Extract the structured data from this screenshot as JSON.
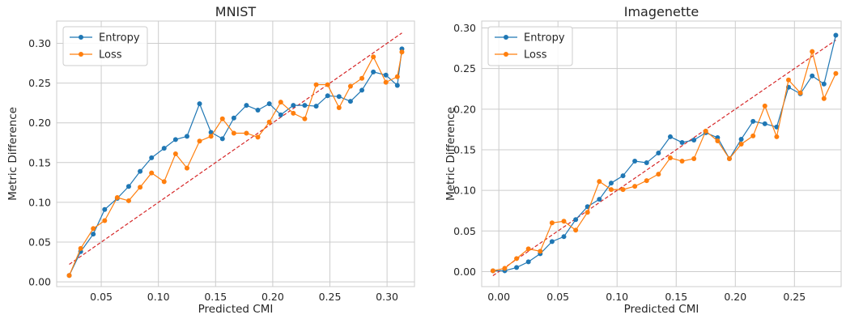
{
  "chart_data": [
    {
      "type": "line",
      "title": "MNIST",
      "xlabel": "Predicted CMI",
      "ylabel": "Metric Difference",
      "xlim": [
        0.011,
        0.324
      ],
      "ylim": [
        -0.006,
        0.328
      ],
      "xticks": [
        0.05,
        0.1,
        0.15,
        0.2,
        0.25,
        0.3
      ],
      "xtick_labels": [
        "0.05",
        "0.10",
        "0.15",
        "0.20",
        "0.25",
        "0.30"
      ],
      "yticks": [
        0.0,
        0.05,
        0.1,
        0.15,
        0.2,
        0.25,
        0.3
      ],
      "ytick_labels": [
        "0.00",
        "0.05",
        "0.10",
        "0.15",
        "0.20",
        "0.25",
        "0.30"
      ],
      "grid": true,
      "legend_position": "top-left",
      "x": [
        0.022,
        0.032,
        0.043,
        0.053,
        0.064,
        0.074,
        0.084,
        0.094,
        0.105,
        0.115,
        0.125,
        0.136,
        0.146,
        0.156,
        0.166,
        0.177,
        0.187,
        0.197,
        0.207,
        0.218,
        0.228,
        0.238,
        0.248,
        0.258,
        0.268,
        0.278,
        0.288,
        0.299,
        0.309,
        0.313
      ],
      "series": [
        {
          "name": "Entropy",
          "color": "#1f77b4",
          "values": [
            0.008,
            0.038,
            0.06,
            0.091,
            0.105,
            0.12,
            0.139,
            0.156,
            0.168,
            0.179,
            0.183,
            0.224,
            0.188,
            0.18,
            0.206,
            0.222,
            0.216,
            0.224,
            0.21,
            0.222,
            0.222,
            0.221,
            0.234,
            0.233,
            0.227,
            0.241,
            0.264,
            0.26,
            0.247,
            0.293
          ]
        },
        {
          "name": "Loss",
          "color": "#ff7f0e",
          "values": [
            0.008,
            0.042,
            0.067,
            0.077,
            0.106,
            0.102,
            0.119,
            0.137,
            0.126,
            0.161,
            0.143,
            0.177,
            0.183,
            0.205,
            0.187,
            0.187,
            0.182,
            0.201,
            0.226,
            0.212,
            0.205,
            0.248,
            0.248,
            0.219,
            0.246,
            0.256,
            0.283,
            0.251,
            0.258,
            0.289
          ]
        }
      ],
      "reference_line": {
        "color": "#d62728",
        "style": "dashed",
        "x": [
          0.022,
          0.313
        ],
        "y": [
          0.022,
          0.313
        ]
      }
    },
    {
      "type": "line",
      "title": "Imagenette",
      "xlabel": "Predicted CMI",
      "ylabel": "Metric Difference",
      "xlim": [
        -0.0145,
        0.2895
      ],
      "ylim": [
        -0.0185,
        0.3085
      ],
      "xticks": [
        0.0,
        0.05,
        0.1,
        0.15,
        0.2,
        0.25
      ],
      "xtick_labels": [
        "0.00",
        "0.05",
        "0.10",
        "0.15",
        "0.20",
        "0.25"
      ],
      "yticks": [
        0.0,
        0.05,
        0.1,
        0.15,
        0.2,
        0.25,
        0.3
      ],
      "ytick_labels": [
        "0.00",
        "0.05",
        "0.10",
        "0.15",
        "0.20",
        "0.25",
        "0.30"
      ],
      "grid": true,
      "legend_position": "top-left",
      "x": [
        -0.005,
        0.005,
        0.015,
        0.025,
        0.035,
        0.045,
        0.055,
        0.065,
        0.075,
        0.085,
        0.095,
        0.105,
        0.115,
        0.125,
        0.135,
        0.145,
        0.155,
        0.165,
        0.175,
        0.185,
        0.195,
        0.205,
        0.215,
        0.225,
        0.235,
        0.245,
        0.255,
        0.265,
        0.275,
        0.285
      ],
      "series": [
        {
          "name": "Entropy",
          "color": "#1f77b4",
          "values": [
            0.001,
            0.001,
            0.005,
            0.012,
            0.022,
            0.037,
            0.043,
            0.064,
            0.08,
            0.089,
            0.109,
            0.118,
            0.136,
            0.134,
            0.146,
            0.166,
            0.159,
            0.162,
            0.171,
            0.165,
            0.139,
            0.163,
            0.185,
            0.182,
            0.178,
            0.227,
            0.219,
            0.241,
            0.231,
            0.291
          ]
        },
        {
          "name": "Loss",
          "color": "#ff7f0e",
          "values": [
            0.001,
            0.004,
            0.016,
            0.028,
            0.025,
            0.06,
            0.062,
            0.051,
            0.073,
            0.111,
            0.101,
            0.101,
            0.105,
            0.112,
            0.12,
            0.14,
            0.136,
            0.139,
            0.173,
            0.161,
            0.139,
            0.157,
            0.167,
            0.204,
            0.166,
            0.236,
            0.22,
            0.271,
            0.213,
            0.244
          ]
        }
      ],
      "reference_line": {
        "color": "#d62728",
        "style": "dashed",
        "x": [
          -0.005,
          0.285
        ],
        "y": [
          -0.005,
          0.285
        ]
      }
    }
  ]
}
